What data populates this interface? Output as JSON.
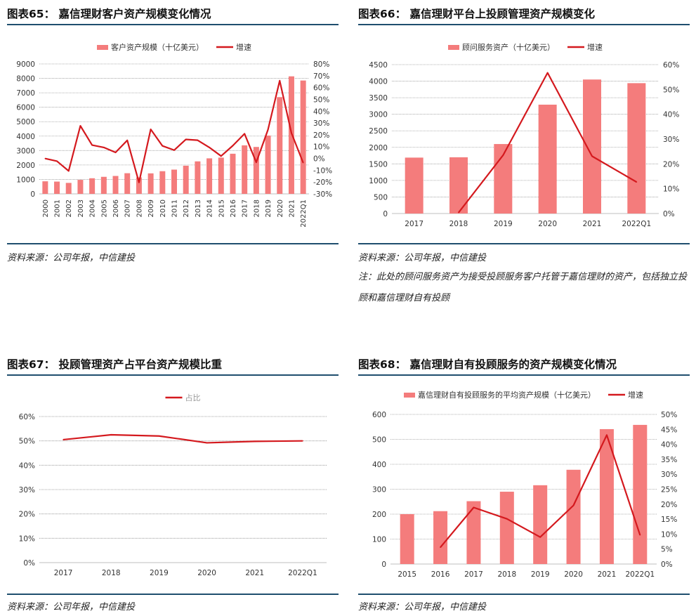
{
  "panels": [
    {
      "title": "图表65： 嘉信理财客户资产规模变化情况",
      "source": "资料来源：公司年报，中信建投",
      "note": "",
      "chart_data": {
        "type": "bar+line",
        "categories": [
          "2000",
          "2001",
          "2002",
          "2003",
          "2004",
          "2005",
          "2006",
          "2007",
          "2008",
          "2009",
          "2010",
          "2011",
          "2012",
          "2013",
          "2014",
          "2015",
          "2016",
          "2017",
          "2018",
          "2019",
          "2020",
          "2021",
          "2022Q1"
        ],
        "bar_series": {
          "name": "客户资产规模（十亿美元）",
          "values": [
            870,
            850,
            760,
            970,
            1080,
            1180,
            1240,
            1430,
            1140,
            1420,
            1570,
            1680,
            1950,
            2250,
            2460,
            2510,
            2780,
            3360,
            3250,
            4040,
            6700,
            8140,
            7850
          ]
        },
        "line_series": {
          "name": "增速",
          "values": [
            -0.1,
            -2.3,
            -10.6,
            27.6,
            11.3,
            9.3,
            5.1,
            15.3,
            -20.3,
            24.6,
            10.6,
            7.0,
            16.1,
            15.4,
            9.3,
            2.0,
            10.8,
            20.9,
            -3.3,
            24.3,
            65.8,
            21.5,
            -3.6
          ]
        },
        "y_left": {
          "min": 0,
          "max": 9000,
          "step": 1000,
          "ticks": [
            "0",
            "1000",
            "2000",
            "3000",
            "4000",
            "5000",
            "6000",
            "7000",
            "8000",
            "9000"
          ]
        },
        "y_right": {
          "min": -30,
          "max": 80,
          "step": 10,
          "ticks": [
            "-30%",
            "-20%",
            "-10%",
            "0%",
            "10%",
            "20%",
            "30%",
            "40%",
            "50%",
            "60%",
            "70%",
            "80%"
          ]
        },
        "legend_position": "top-center",
        "rotate_x_labels": true,
        "bar_color": "#f47c7c",
        "line_color": "#d4191e"
      }
    },
    {
      "title": "图表66： 嘉信理财平台上投顾管理资产规模变化",
      "source": "资料来源：公司年报，中信建投",
      "note": "注：此处的顾问服务资产为接受投顾服务客户托管于嘉信理财的资产，包括独立投顾和嘉信理财自有投顾",
      "chart_data": {
        "type": "bar+line",
        "categories": [
          "2017",
          "2018",
          "2019",
          "2020",
          "2021",
          "2022Q1"
        ],
        "bar_series": {
          "name": "顾问服务资产（十亿美元）",
          "values": [
            1690,
            1700,
            2100,
            3290,
            4050,
            3940
          ]
        },
        "line_series": {
          "name": "增速",
          "values": [
            null,
            0.4,
            23.5,
            56.7,
            23.1,
            12.7
          ]
        },
        "y_left": {
          "min": 0,
          "max": 4500,
          "step": 500,
          "ticks": [
            "0",
            "500",
            "1000",
            "1500",
            "2000",
            "2500",
            "3000",
            "3500",
            "4000",
            "4500"
          ]
        },
        "y_right": {
          "min": 0,
          "max": 60,
          "step": 10,
          "ticks": [
            "0%",
            "10%",
            "20%",
            "30%",
            "40%",
            "50%",
            "60%"
          ]
        },
        "legend_position": "top-center",
        "rotate_x_labels": false,
        "bar_color": "#f47c7c",
        "line_color": "#d4191e"
      }
    },
    {
      "title": "图表67： 投顾管理资产占平台资产规模比重",
      "source": "资料来源：公司年报，中信建投",
      "note": "",
      "chart_data": {
        "type": "line",
        "categories": [
          "2017",
          "2018",
          "2019",
          "2020",
          "2021",
          "2022Q1"
        ],
        "line_series": {
          "name": "占比",
          "values": [
            50.5,
            52.5,
            52.0,
            49.2,
            49.8,
            50.0
          ]
        },
        "y_left": {
          "min": 0,
          "max": 60,
          "step": 10,
          "ticks": [
            "0%",
            "10%",
            "20%",
            "30%",
            "40%",
            "50%",
            "60%"
          ]
        },
        "legend_position": "top-center",
        "line_color": "#d4191e"
      }
    },
    {
      "title": "图表68： 嘉信理财自有投顾服务的资产规模变化情况",
      "source": "资料来源：公司年报，中信建投",
      "note": "",
      "chart_data": {
        "type": "bar+line",
        "categories": [
          "2015",
          "2016",
          "2017",
          "2018",
          "2019",
          "2020",
          "2021",
          "2022Q1"
        ],
        "bar_series": {
          "name": "嘉信理财自有投顾服务的平均资产规模（十亿美元）",
          "values": [
            200,
            212,
            252,
            290,
            316,
            378,
            541,
            558
          ]
        },
        "line_series": {
          "name": "增速",
          "values": [
            null,
            5.6,
            18.9,
            15.1,
            9.0,
            19.6,
            43.1,
            9.7
          ]
        },
        "y_left": {
          "min": 0,
          "max": 600,
          "step": 100,
          "ticks": [
            "0",
            "100",
            "200",
            "300",
            "400",
            "500",
            "600"
          ]
        },
        "y_right": {
          "min": 0,
          "max": 50,
          "step": 5,
          "ticks": [
            "0%",
            "5%",
            "10%",
            "15%",
            "20%",
            "25%",
            "30%",
            "35%",
            "40%",
            "45%",
            "50%"
          ]
        },
        "legend_position": "top-center",
        "rotate_x_labels": false,
        "bar_color": "#f47c7c",
        "line_color": "#d4191e"
      }
    }
  ]
}
